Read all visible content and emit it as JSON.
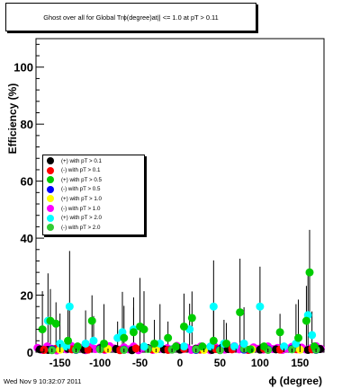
{
  "title": "Ghost over all for Global Trϕ(degree)at|| <= 1.0 at pT > 0.11",
  "footer": "Wed Nov  9 10:32:07 2011",
  "chart_data": {
    "type": "scatter",
    "xlabel": "ϕ (degree)",
    "ylabel": "Efficiency (%)",
    "xlim": [
      -180,
      180
    ],
    "ylim": [
      0,
      110
    ],
    "x_ticks": [
      -150,
      -100,
      -50,
      0,
      50,
      100,
      150
    ],
    "x_tick_labels": [
      "-150",
      "-100",
      "-50",
      "0",
      "50",
      "100",
      "150"
    ],
    "y_ticks": [
      0,
      20,
      40,
      60,
      80,
      100
    ],
    "y_tick_labels": [
      "0",
      "20",
      "40",
      "60",
      "80",
      "100"
    ],
    "legend_placement": "middle-left",
    "grid": false,
    "series": [
      {
        "name": "(+) with pT > 0.1",
        "color": "#000000",
        "x": [
          -175,
          -165,
          -150,
          -140,
          -120,
          -100,
          -80,
          -60,
          -40,
          -20,
          0,
          20,
          40,
          60,
          80,
          100,
          120,
          140,
          160,
          175
        ],
        "y": [
          1.0,
          0.8,
          1.5,
          1.2,
          0.9,
          1.3,
          1.1,
          0.7,
          1.4,
          1.0,
          0.9,
          1.2,
          0.8,
          1.1,
          1.3,
          0.9,
          1.0,
          1.2,
          0.8,
          1.1
        ]
      },
      {
        "name": "(-) with pT > 0.1",
        "color": "#ff0000",
        "x": [
          -170,
          -155,
          -135,
          -115,
          -95,
          -75,
          -55,
          -35,
          -15,
          5,
          25,
          45,
          65,
          85,
          105,
          125,
          145,
          165
        ],
        "y": [
          0.8,
          1.2,
          1.0,
          0.9,
          1.1,
          0.7,
          1.3,
          1.0,
          0.8,
          1.2,
          0.9,
          1.1,
          1.0,
          0.8,
          1.2,
          0.9,
          1.1,
          1.0
        ]
      },
      {
        "name": "(+) with pT > 0.5",
        "color": "#00cc00",
        "x": [
          -172,
          -162,
          -155,
          -140,
          -128,
          -110,
          -95,
          -70,
          -58,
          -50,
          -45,
          -32,
          -15,
          -5,
          5,
          15,
          28,
          42,
          58,
          75,
          88,
          105,
          125,
          148,
          158,
          162,
          168
        ],
        "y": [
          8,
          11,
          10,
          4,
          2,
          11,
          3,
          5,
          7,
          9,
          8,
          3,
          5,
          2,
          9,
          12,
          2,
          4,
          3,
          14,
          1,
          2,
          7,
          5,
          11,
          28,
          2
        ]
      },
      {
        "name": "(-) with pT > 0.5",
        "color": "#0000ff",
        "x": [
          -160,
          -130,
          -100,
          -70,
          -40,
          -10,
          20,
          50,
          80,
          110,
          140,
          170
        ],
        "y": [
          1.0,
          0.8,
          1.1,
          0.9,
          1.2,
          1.0,
          0.8,
          1.1,
          0.9,
          1.0,
          1.2,
          0.8
        ]
      },
      {
        "name": "(+) with pT > 1.0",
        "color": "#ffff00",
        "x": [
          -150,
          -90,
          -30,
          30,
          90,
          150
        ],
        "y": [
          0.9,
          1.1,
          1.0,
          0.8,
          1.0,
          0.9
        ]
      },
      {
        "name": "(-) with pT > 1.0",
        "color": "#ff00ff",
        "x": [
          -178,
          -172,
          -166,
          -160,
          -154,
          -148,
          -142,
          -136,
          -130,
          -124,
          -118,
          -112,
          -106,
          -100,
          -94,
          -88,
          -82,
          -76,
          -70,
          -64,
          -58,
          -52,
          -46,
          -40,
          -34,
          -28,
          -22,
          -16,
          -10,
          -4,
          2,
          8,
          14,
          20,
          26,
          32,
          38,
          44,
          50,
          56,
          62,
          68,
          74,
          80,
          86,
          92,
          98,
          104,
          110,
          116,
          122,
          128,
          134,
          140,
          146,
          152,
          158,
          164,
          170,
          176
        ],
        "y": [
          1.5,
          0.8,
          2.0,
          1.2,
          0.6,
          1.8,
          1.0,
          2.2,
          0.9,
          1.4,
          0.7,
          1.9,
          1.1,
          1.6,
          0.8,
          2.1,
          1.3,
          0.9,
          1.7,
          1.0,
          2.0,
          0.7,
          1.5,
          1.2,
          0.8,
          1.9,
          1.1,
          1.4,
          0.9,
          2.2,
          1.0,
          1.6,
          0.8,
          1.3,
          2.0,
          1.1,
          0.7,
          1.8,
          1.2,
          0.9,
          1.5,
          2.1,
          1.0,
          1.4,
          0.8,
          1.7,
          1.2,
          0.9,
          2.0,
          1.1,
          1.5,
          0.8,
          1.3,
          1.9,
          1.0,
          1.6,
          0.9,
          1.4,
          2.1,
          1.2
        ]
      },
      {
        "name": "(+) with pT > 2.0",
        "color": "#00ffff",
        "x": [
          -165,
          -150,
          -142,
          -138,
          -118,
          -108,
          -78,
          -72,
          -58,
          -45,
          -25,
          5,
          12,
          38,
          42,
          55,
          68,
          80,
          100,
          130,
          145,
          160,
          165
        ],
        "y": [
          11,
          3,
          2,
          16,
          3,
          4,
          5,
          7,
          8,
          2,
          3,
          2,
          8,
          2,
          16,
          3,
          2,
          3,
          16,
          2,
          3,
          13,
          6
        ]
      },
      {
        "name": "(-) with pT > 2.0",
        "color": "#33cc33",
        "x": [
          -160,
          -130,
          -100,
          -70,
          -40,
          -10,
          20,
          50,
          80,
          110,
          140,
          170
        ],
        "y": [
          0.7,
          0.9,
          1.0,
          0.8,
          1.1,
          0.9,
          1.0,
          0.7,
          1.2,
          0.8,
          1.0,
          0.9
        ]
      }
    ]
  }
}
